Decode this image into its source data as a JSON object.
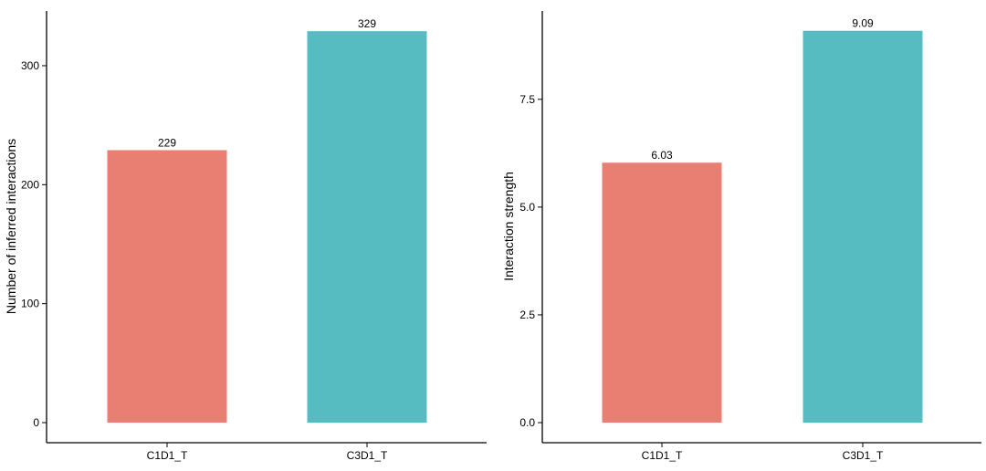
{
  "colors": {
    "C1D1_T": "#E87F72",
    "C3D1_T": "#57BCC2",
    "axis": "#000000"
  },
  "chart_data": [
    {
      "type": "bar",
      "categories": [
        "C1D1_T",
        "C3D1_T"
      ],
      "values": [
        229,
        329
      ],
      "data_labels": [
        "229",
        "329"
      ],
      "ylabel": "Number of inferred interactions",
      "xlabel": "",
      "ylim": [
        0,
        346
      ],
      "yticks": [
        0,
        100,
        200,
        300
      ],
      "ytick_labels": [
        "0",
        "100",
        "200",
        "300"
      ],
      "grid": false,
      "legend": "none"
    },
    {
      "type": "bar",
      "categories": [
        "C1D1_T",
        "C3D1_T"
      ],
      "values": [
        6.03,
        9.09
      ],
      "data_labels": [
        "6.03",
        "9.09"
      ],
      "ylabel": "Interaction strength",
      "xlabel": "",
      "ylim": [
        0,
        9.55
      ],
      "yticks": [
        0,
        2.5,
        5,
        7.5
      ],
      "ytick_labels": [
        "0.0",
        "2.5",
        "5.0",
        "7.5"
      ],
      "grid": false,
      "legend": "none"
    }
  ]
}
